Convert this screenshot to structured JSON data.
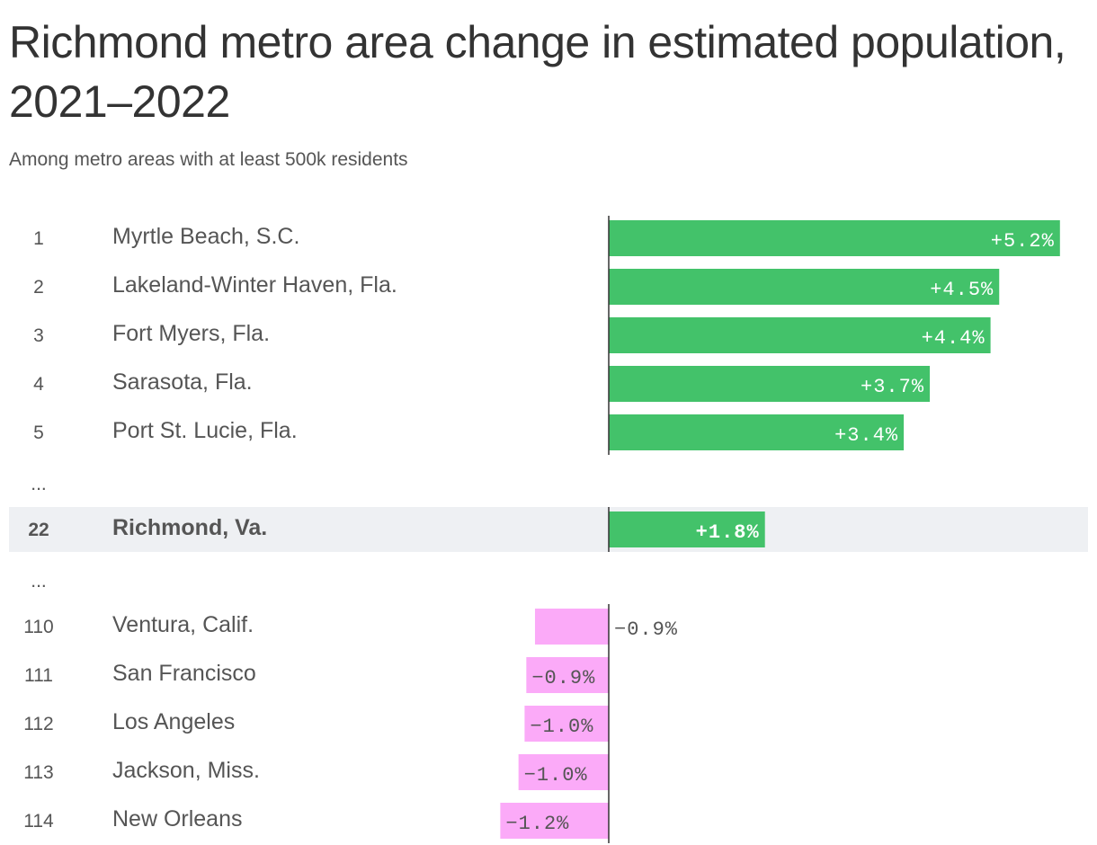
{
  "header": {
    "title": "Richmond metro area change in estimated population, 2021–2022",
    "subtitle": "Among metro areas with at least 500k residents"
  },
  "colors": {
    "positive": "#43c26a",
    "negative": "#fbaaf8",
    "highlight_row": "#eef0f3",
    "axis": "#333333",
    "text": "#555555",
    "label_inside_positive": "#ffffff",
    "label_negative": "#555555"
  },
  "chart_data": {
    "type": "bar",
    "orientation": "horizontal",
    "title": "Richmond metro area change in estimated population, 2021–2022",
    "subtitle": "Among metro areas with at least 500k residents",
    "xlim": [
      -2.0,
      5.2
    ],
    "highlight": "Richmond, Va.",
    "rows": [
      {
        "rank": "1",
        "name": "Myrtle Beach, S.C.",
        "value": 5.2,
        "label": "+5.2%"
      },
      {
        "rank": "2",
        "name": "Lakeland-Winter Haven, Fla.",
        "value": 4.5,
        "label": "+4.5%"
      },
      {
        "rank": "3",
        "name": "Fort Myers, Fla.",
        "value": 4.4,
        "label": "+4.4%"
      },
      {
        "rank": "4",
        "name": "Sarasota, Fla.",
        "value": 3.7,
        "label": "+3.7%"
      },
      {
        "rank": "5",
        "name": "Port St. Lucie, Fla.",
        "value": 3.4,
        "label": "+3.4%"
      },
      {
        "gap": true,
        "rank": "..."
      },
      {
        "rank": "22",
        "name": "Richmond, Va.",
        "value": 1.8,
        "label": "+1.8%",
        "highlight": true
      },
      {
        "gap": true,
        "rank": "..."
      },
      {
        "rank": "110",
        "name": "Ventura, Calif.",
        "value": -0.85,
        "label": "−0.9%"
      },
      {
        "rank": "111",
        "name": "San Francisco",
        "value": -0.95,
        "label": "−0.9%"
      },
      {
        "rank": "112",
        "name": "Los Angeles",
        "value": -0.97,
        "label": "−1.0%"
      },
      {
        "rank": "113",
        "name": "Jackson, Miss.",
        "value": -1.04,
        "label": "−1.0%"
      },
      {
        "rank": "114",
        "name": "New Orleans",
        "value": -1.25,
        "label": "−1.2%"
      }
    ]
  }
}
